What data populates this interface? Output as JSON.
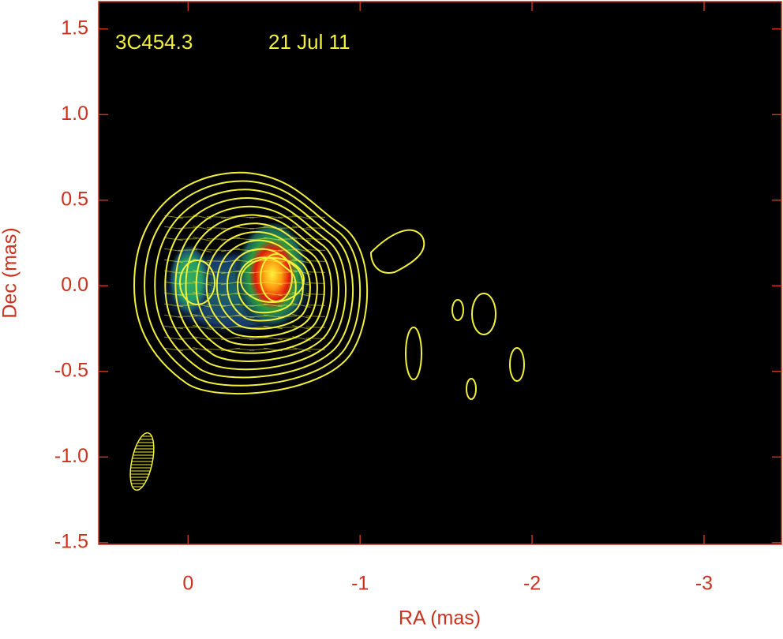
{
  "chart_data": {
    "type": "image",
    "title": "3C454.3",
    "subtitle": "21 Jul 11",
    "x_label": "RA (mas)",
    "y_label": "Dec (mas)",
    "xlim": [
      0.52,
      -3.45
    ],
    "ylim": [
      -1.51,
      1.66
    ],
    "xticks": [
      0,
      -1,
      -2,
      -3
    ],
    "yticks": [
      1.5,
      {
        "value": 1,
        "label": "1.0"
      },
      0.5,
      {
        "value": 0,
        "label": "0.0"
      },
      -0.5,
      {
        "value": -1,
        "label": "-1.0"
      },
      -1.5
    ],
    "axis_color": "#c8321e",
    "contour_color": "#f2f03a"
  }
}
